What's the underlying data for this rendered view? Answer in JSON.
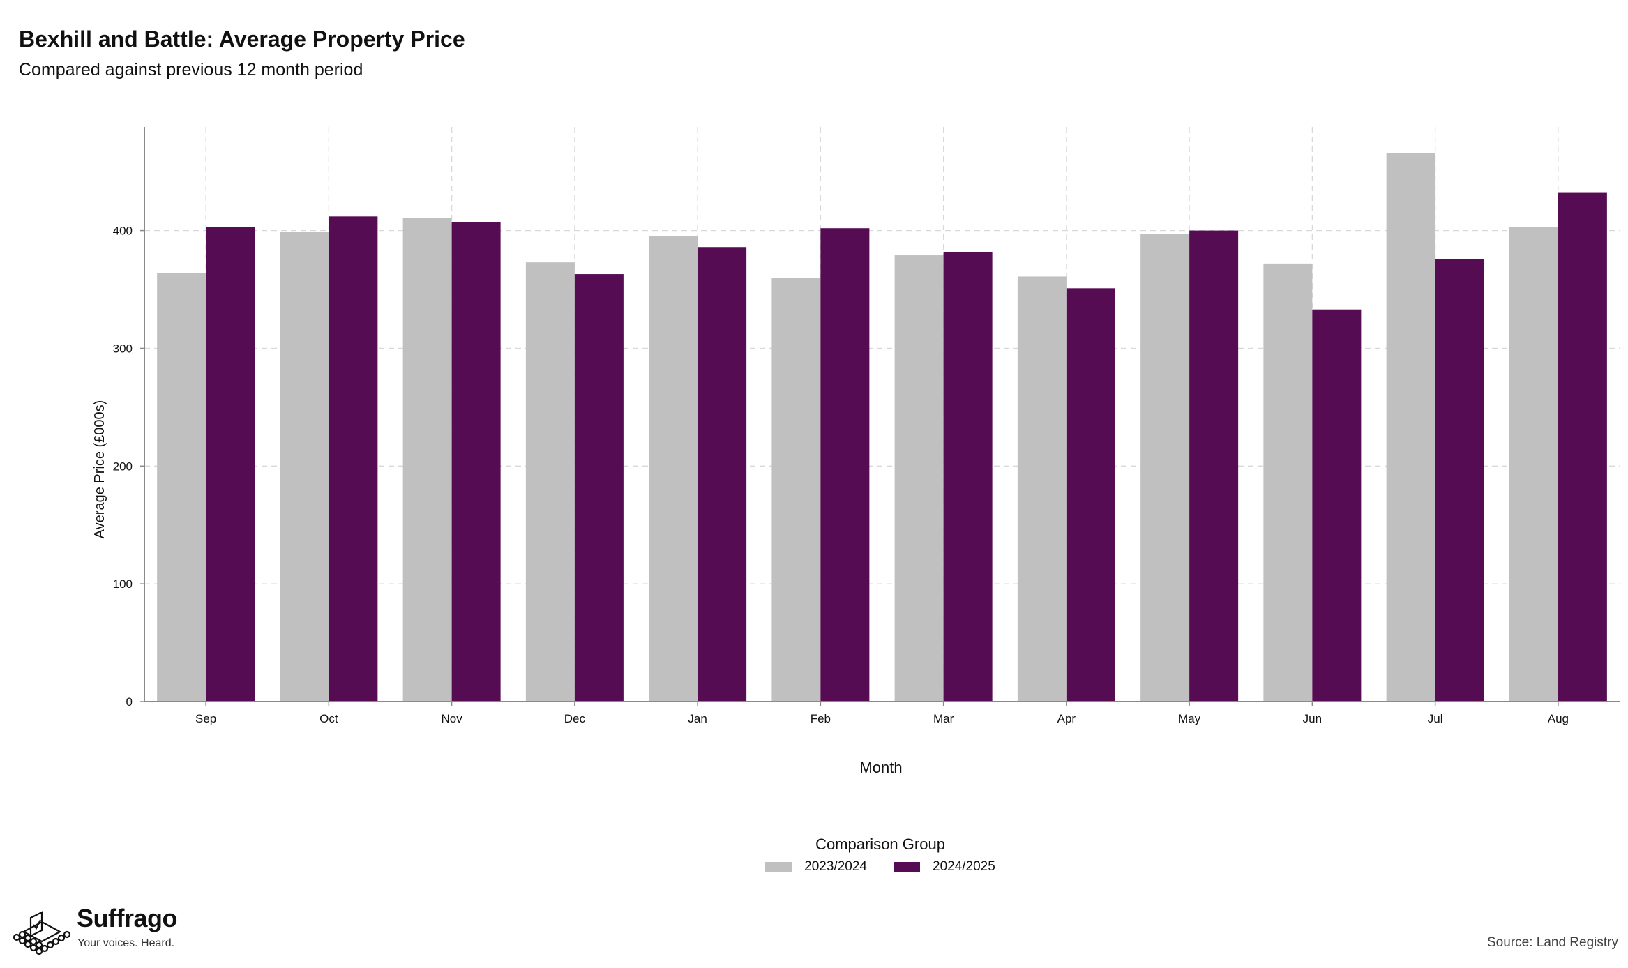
{
  "colors": {
    "series_2023_2024": "#c0c0c0",
    "series_2024_2025": "#560c52",
    "grid": "#d9d9d9",
    "axis": "#8a8a8a"
  },
  "branding": {
    "logo_name": "Suffrago",
    "tagline": "Your voices. Heard.",
    "logo_icon": "ballot-box-icon"
  },
  "source": "Source: Land Registry",
  "chart_data": {
    "type": "bar",
    "title": "Bexhill and Battle: Average Property Price",
    "subtitle": "Compared against previous 12 month period",
    "xlabel": "Month",
    "ylabel": "Average Price (£000s)",
    "categories": [
      "Sep",
      "Oct",
      "Nov",
      "Dec",
      "Jan",
      "Feb",
      "Mar",
      "Apr",
      "May",
      "Jun",
      "Jul",
      "Aug"
    ],
    "series": [
      {
        "name": "2023/2024",
        "values": [
          364,
          399,
          411,
          373,
          395,
          360,
          379,
          361,
          397,
          372,
          466,
          403
        ]
      },
      {
        "name": "2024/2025",
        "values": [
          403,
          412,
          407,
          363,
          386,
          402,
          382,
          351,
          400,
          333,
          376,
          432
        ]
      }
    ],
    "ylim": [
      0,
      488
    ],
    "yticks": [
      0,
      100,
      200,
      300,
      400
    ],
    "grid": true,
    "legend_title": "Comparison Group",
    "legend_position": "bottom"
  }
}
